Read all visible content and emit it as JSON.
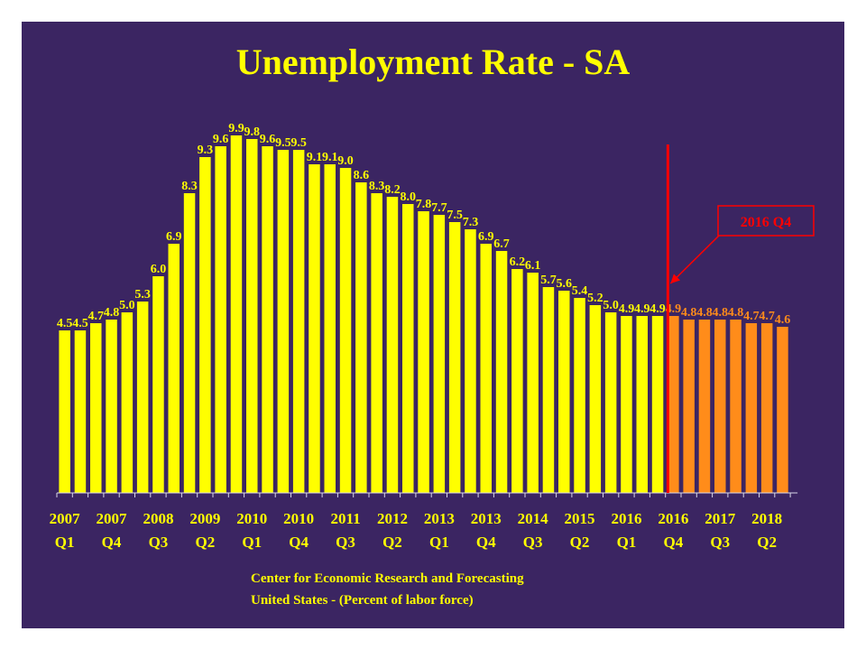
{
  "colors": {
    "background": "#3b2562",
    "actual_bar": "#ffff00",
    "forecast_bar": "#ff8c1a",
    "marker_line": "#ff0000",
    "text": "#ffff00"
  },
  "source": {
    "line1": "Center for Economic Research and Forecasting",
    "line2": "United States - (Percent of labor force)"
  },
  "chart_data": {
    "type": "bar",
    "title": "Unemployment Rate - SA",
    "xlabel": "",
    "ylabel": "",
    "ylim": [
      0,
      10
    ],
    "grid": false,
    "values": [
      4.5,
      4.5,
      4.7,
      4.8,
      5.0,
      5.3,
      6.0,
      6.9,
      8.3,
      9.3,
      9.6,
      9.9,
      9.8,
      9.6,
      9.5,
      9.5,
      9.1,
      9.1,
      9.0,
      8.6,
      8.3,
      8.2,
      8.0,
      7.8,
      7.7,
      7.5,
      7.3,
      6.9,
      6.7,
      6.2,
      6.1,
      5.7,
      5.6,
      5.4,
      5.2,
      5.0,
      4.9,
      4.9,
      4.9,
      4.9,
      4.8,
      4.8,
      4.8,
      4.8,
      4.7,
      4.7,
      4.6
    ],
    "value_labels": [
      "4.5",
      "4.5",
      "4.7",
      "4.8",
      "5.0",
      "5.3",
      "6.0",
      "6.9",
      "8.3",
      "9.3",
      "9.6",
      "9.9",
      "9.8",
      "9.6",
      "9.5",
      "9.5",
      "9.1",
      "9.1",
      "9.0",
      "8.6",
      "8.3",
      "8.2",
      "8.0",
      "7.8",
      "7.7",
      "7.5",
      "7.3",
      "6.9",
      "6.7",
      "6.2",
      "6.1",
      "5.7",
      "5.6",
      "5.4",
      "5.2",
      "5.0",
      "4.9",
      "4.9",
      "4.9",
      "4.9",
      "4.8",
      "4.8",
      "4.8",
      "4.8",
      "4.7",
      "4.7",
      "4.6"
    ],
    "forecast_start_index": 39,
    "ticks": [
      {
        "index": 0,
        "year": "2007",
        "quarter": "Q1"
      },
      {
        "index": 3,
        "year": "2007",
        "quarter": "Q4"
      },
      {
        "index": 6,
        "year": "2008",
        "quarter": "Q3"
      },
      {
        "index": 9,
        "year": "2009",
        "quarter": "Q2"
      },
      {
        "index": 12,
        "year": "2010",
        "quarter": "Q1"
      },
      {
        "index": 15,
        "year": "2010",
        "quarter": "Q4"
      },
      {
        "index": 18,
        "year": "2011",
        "quarter": "Q3"
      },
      {
        "index": 21,
        "year": "2012",
        "quarter": "Q2"
      },
      {
        "index": 24,
        "year": "2013",
        "quarter": "Q1"
      },
      {
        "index": 27,
        "year": "2013",
        "quarter": "Q4"
      },
      {
        "index": 30,
        "year": "2014",
        "quarter": "Q3"
      },
      {
        "index": 33,
        "year": "2015",
        "quarter": "Q2"
      },
      {
        "index": 36,
        "year": "2016",
        "quarter": "Q1"
      },
      {
        "index": 39,
        "year": "2016",
        "quarter": "Q4"
      },
      {
        "index": 42,
        "year": "2017",
        "quarter": "Q3"
      },
      {
        "index": 45,
        "year": "2018",
        "quarter": "Q2"
      }
    ],
    "annotation": {
      "text": "2016 Q4",
      "at_index": 39
    }
  }
}
